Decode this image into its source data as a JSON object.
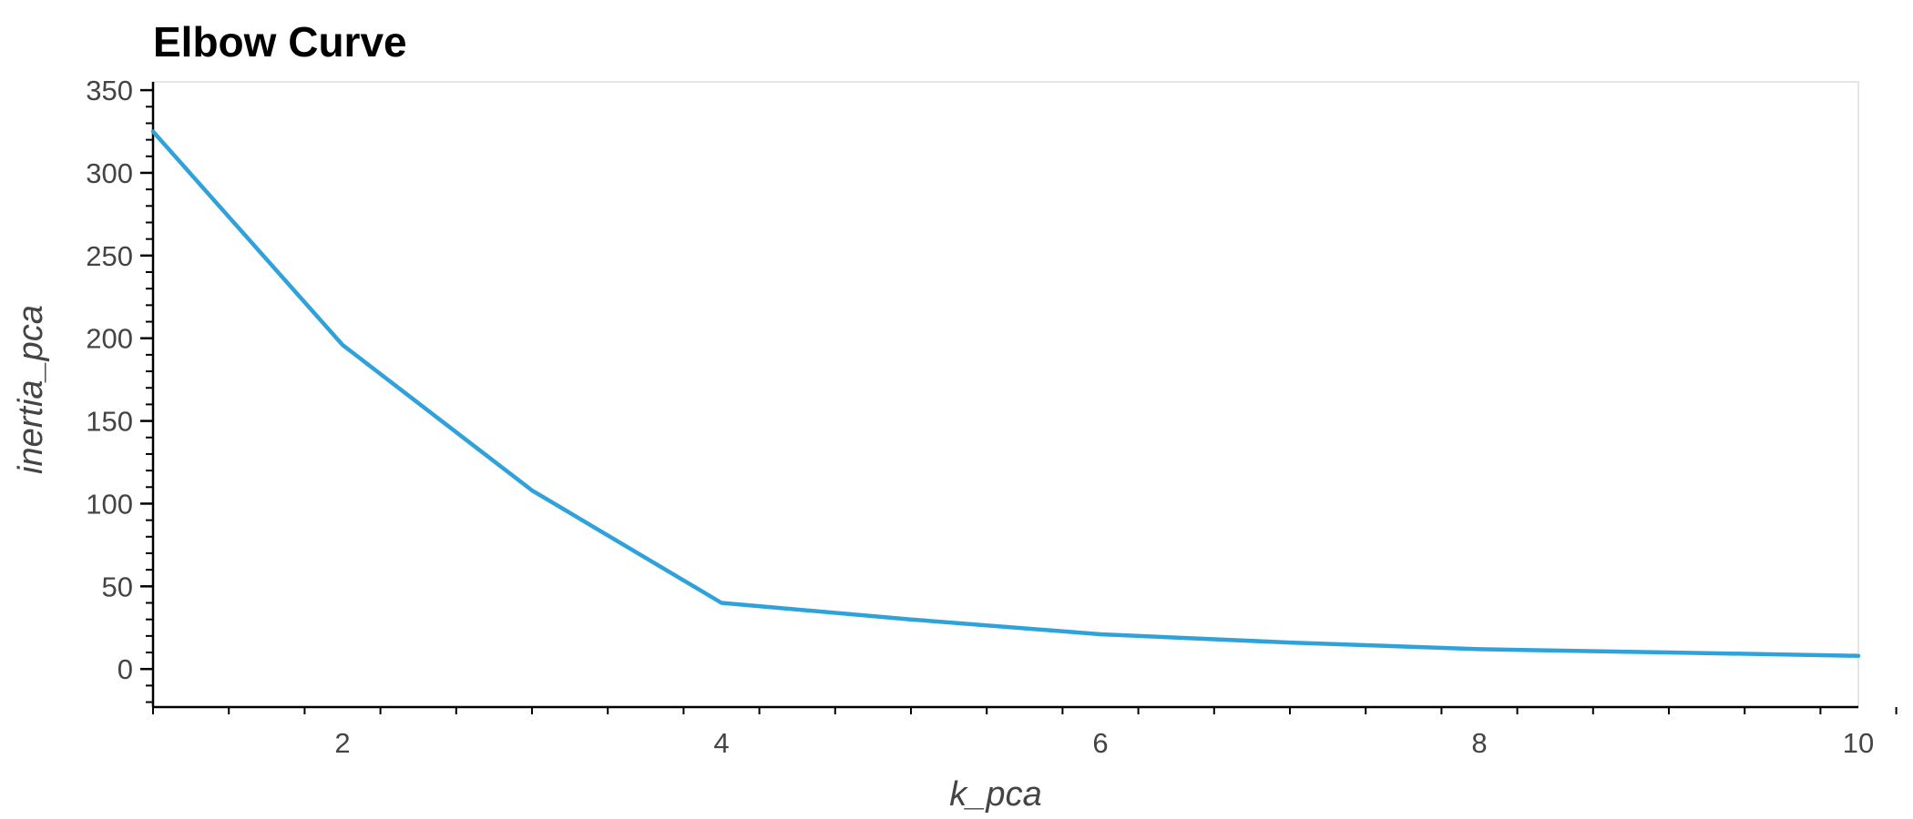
{
  "chart_data": {
    "type": "line",
    "title": "Elbow Curve",
    "xlabel": "k_pca",
    "ylabel": "inertia_pca",
    "xlim": [
      1,
      10
    ],
    "ylim": [
      -23,
      355
    ],
    "x_major_ticks": [
      2,
      4,
      6,
      8,
      10
    ],
    "x_minor_step": 0.4,
    "y_major_ticks": [
      0,
      50,
      100,
      150,
      200,
      250,
      300,
      350
    ],
    "y_minor_step": 10,
    "grid": false,
    "legend": "none",
    "series": [
      {
        "color": "#30a2da",
        "x": [
          1,
          2,
          3,
          4,
          5,
          6,
          7,
          8,
          9,
          10
        ],
        "y": [
          325,
          196,
          108,
          40,
          30,
          21,
          16,
          12,
          10,
          8
        ]
      }
    ]
  }
}
